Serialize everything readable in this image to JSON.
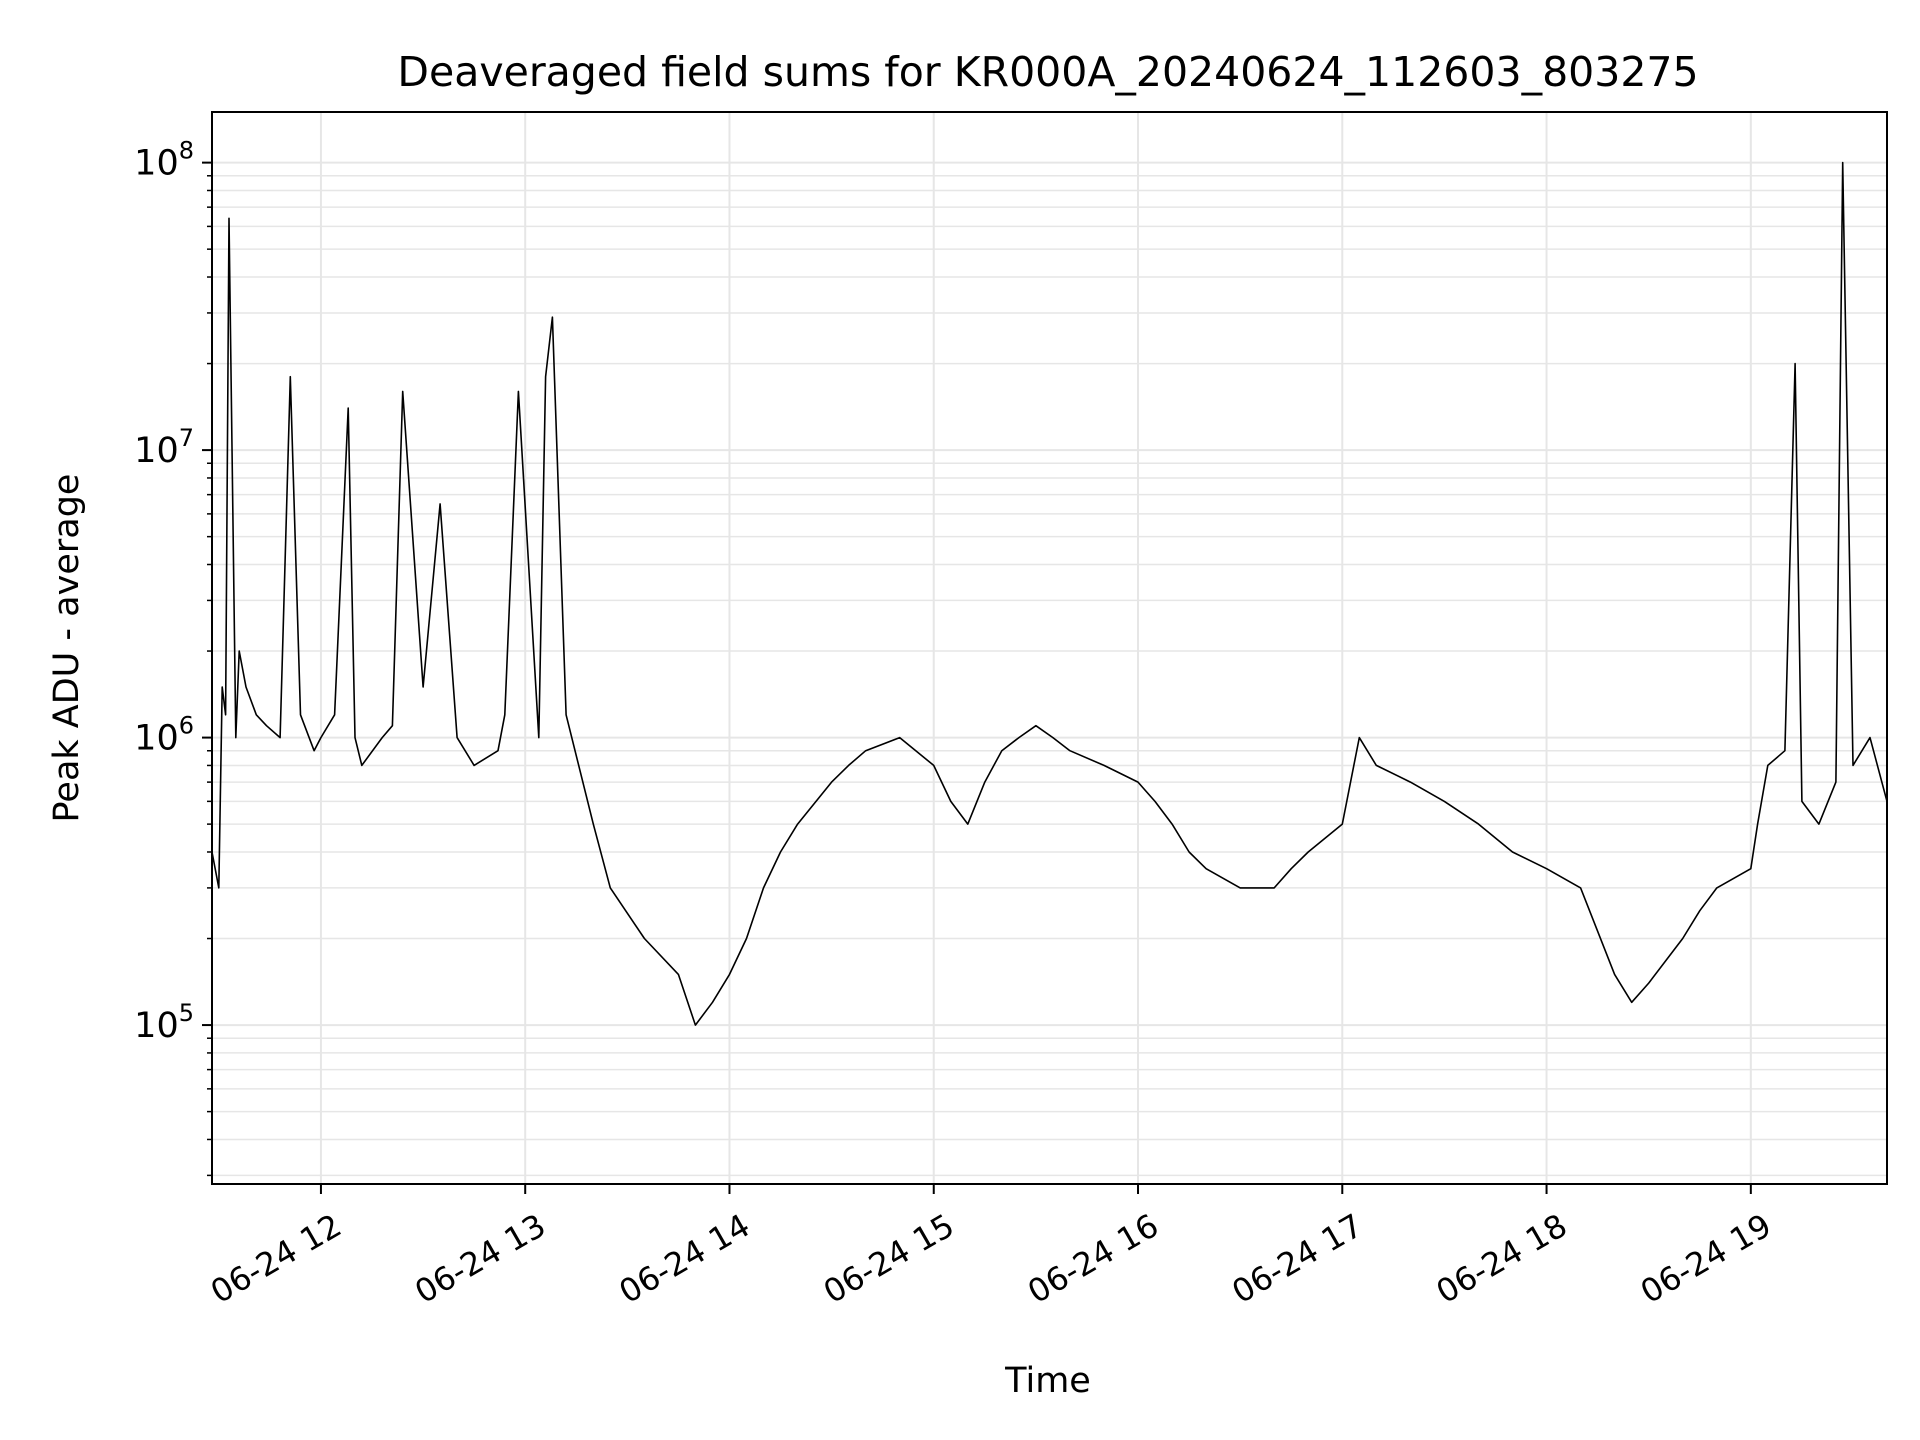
{
  "chart_data": {
    "type": "line",
    "title": "Deaveraged field sums for KR000A_20240624_112603_803275",
    "xlabel": "Time",
    "ylabel": "Peak ADU - average",
    "yscale": "log",
    "grid": true,
    "grid_minor": true,
    "line_color": "#000000",
    "grid_color": "#e6e6e6",
    "x_range": [
      "2024-06-24 11:28",
      "2024-06-24 19:40"
    ],
    "y_range": [
      28000,
      150000000
    ],
    "x_ticks": [
      {
        "time": "2024-06-24 12:00",
        "label": "06-24 12"
      },
      {
        "time": "2024-06-24 13:00",
        "label": "06-24 13"
      },
      {
        "time": "2024-06-24 14:00",
        "label": "06-24 14"
      },
      {
        "time": "2024-06-24 15:00",
        "label": "06-24 15"
      },
      {
        "time": "2024-06-24 16:00",
        "label": "06-24 16"
      },
      {
        "time": "2024-06-24 17:00",
        "label": "06-24 17"
      },
      {
        "time": "2024-06-24 18:00",
        "label": "06-24 18"
      },
      {
        "time": "2024-06-24 19:00",
        "label": "06-24 19"
      }
    ],
    "y_ticks": [
      {
        "value": 100000,
        "base": "10",
        "exp": "5"
      },
      {
        "value": 1000000,
        "base": "10",
        "exp": "6"
      },
      {
        "value": 10000000,
        "base": "10",
        "exp": "7"
      },
      {
        "value": 100000000,
        "base": "10",
        "exp": "8"
      }
    ],
    "series": [
      {
        "x": [
          "2024-06-24 11:28",
          "2024-06-24 11:30",
          "2024-06-24 11:31",
          "2024-06-24 11:32",
          "2024-06-24 11:33",
          "2024-06-24 11:35",
          "2024-06-24 11:36",
          "2024-06-24 11:38",
          "2024-06-24 11:41",
          "2024-06-24 11:44",
          "2024-06-24 11:48",
          "2024-06-24 11:51",
          "2024-06-24 11:54",
          "2024-06-24 11:58",
          "2024-06-24 12:00",
          "2024-06-24 12:04",
          "2024-06-24 12:08",
          "2024-06-24 12:10",
          "2024-06-24 12:12",
          "2024-06-24 12:18",
          "2024-06-24 12:21",
          "2024-06-24 12:24",
          "2024-06-24 12:30",
          "2024-06-24 12:35",
          "2024-06-24 12:40",
          "2024-06-24 12:45",
          "2024-06-24 12:52",
          "2024-06-24 12:54",
          "2024-06-24 12:58",
          "2024-06-24 13:04",
          "2024-06-24 13:06",
          "2024-06-24 13:08",
          "2024-06-24 13:12",
          "2024-06-24 13:20",
          "2024-06-24 13:25",
          "2024-06-24 13:35",
          "2024-06-24 13:45",
          "2024-06-24 13:50",
          "2024-06-24 13:55",
          "2024-06-24 14:00",
          "2024-06-24 14:05",
          "2024-06-24 14:10",
          "2024-06-24 14:15",
          "2024-06-24 14:20",
          "2024-06-24 14:30",
          "2024-06-24 14:35",
          "2024-06-24 14:40",
          "2024-06-24 14:50",
          "2024-06-24 15:00",
          "2024-06-24 15:05",
          "2024-06-24 15:10",
          "2024-06-24 15:15",
          "2024-06-24 15:20",
          "2024-06-24 15:25",
          "2024-06-24 15:30",
          "2024-06-24 15:35",
          "2024-06-24 15:40",
          "2024-06-24 15:50",
          "2024-06-24 16:00",
          "2024-06-24 16:05",
          "2024-06-24 16:10",
          "2024-06-24 16:15",
          "2024-06-24 16:20",
          "2024-06-24 16:30",
          "2024-06-24 16:40",
          "2024-06-24 16:45",
          "2024-06-24 16:50",
          "2024-06-24 17:00",
          "2024-06-24 17:05",
          "2024-06-24 17:10",
          "2024-06-24 17:20",
          "2024-06-24 17:30",
          "2024-06-24 17:40",
          "2024-06-24 17:50",
          "2024-06-24 18:00",
          "2024-06-24 18:10",
          "2024-06-24 18:20",
          "2024-06-24 18:25",
          "2024-06-24 18:30",
          "2024-06-24 18:40",
          "2024-06-24 18:45",
          "2024-06-24 18:50",
          "2024-06-24 19:00",
          "2024-06-24 19:02",
          "2024-06-24 19:05",
          "2024-06-24 19:10",
          "2024-06-24 19:13",
          "2024-06-24 19:15",
          "2024-06-24 19:20",
          "2024-06-24 19:25",
          "2024-06-24 19:27",
          "2024-06-24 19:30",
          "2024-06-24 19:35",
          "2024-06-24 19:40"
        ],
        "y": [
          400000,
          300000,
          1500000,
          1200000,
          64000000,
          1000000,
          2000000,
          1500000,
          1200000,
          1100000,
          1000000,
          18000000,
          1200000,
          900000,
          1000000,
          1200000,
          14000000,
          1000000,
          800000,
          1000000,
          1100000,
          16000000,
          1500000,
          6500000,
          1000000,
          800000,
          900000,
          1200000,
          16000000,
          1000000,
          18000000,
          29000000,
          1200000,
          500000,
          300000,
          200000,
          150000,
          100000,
          120000,
          150000,
          200000,
          300000,
          400000,
          500000,
          700000,
          800000,
          900000,
          1000000,
          800000,
          600000,
          500000,
          700000,
          900000,
          1000000,
          1100000,
          1000000,
          900000,
          800000,
          700000,
          600000,
          500000,
          400000,
          350000,
          300000,
          300000,
          350000,
          400000,
          500000,
          1000000,
          800000,
          700000,
          600000,
          500000,
          400000,
          350000,
          300000,
          150000,
          120000,
          140000,
          200000,
          250000,
          300000,
          350000,
          500000,
          800000,
          900000,
          20000000,
          600000,
          500000,
          700000,
          100000000,
          800000,
          1000000,
          600000
        ]
      }
    ]
  }
}
